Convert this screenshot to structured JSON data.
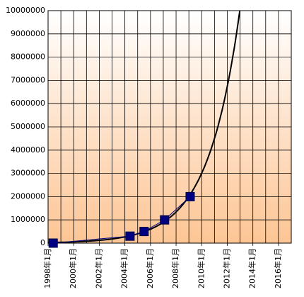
{
  "chart_data": {
    "type": "scatter-line",
    "series": [
      {
        "x": [
          1998.4,
          2004.4,
          2005.5,
          2007.1,
          2009.1
        ],
        "values": [
          0,
          300000,
          500000,
          1000000,
          2000000
        ],
        "color": "#000080"
      }
    ],
    "trendline": "exponential",
    "trendline_color": "#000000",
    "xlim": [
      1998,
      2017
    ],
    "xticks": [
      {
        "value": 1998,
        "label": "1998年1月"
      },
      {
        "value": 2000,
        "label": "2000年1月"
      },
      {
        "value": 2002,
        "label": "2002年1月"
      },
      {
        "value": 2004,
        "label": "2004年1月"
      },
      {
        "value": 2006,
        "label": "2006年1月"
      },
      {
        "value": 2008,
        "label": "2008年1月"
      },
      {
        "value": 2010,
        "label": "2010年1月"
      },
      {
        "value": 2012,
        "label": "2012年1月"
      },
      {
        "value": 2014,
        "label": "2014年1月"
      },
      {
        "value": 2016,
        "label": "2016年1月"
      }
    ],
    "ylim": [
      0,
      10000000
    ],
    "yticks": [
      0,
      1000000,
      2000000,
      3000000,
      4000000,
      5000000,
      6000000,
      7000000,
      8000000,
      9000000,
      10000000
    ],
    "grid": true
  }
}
